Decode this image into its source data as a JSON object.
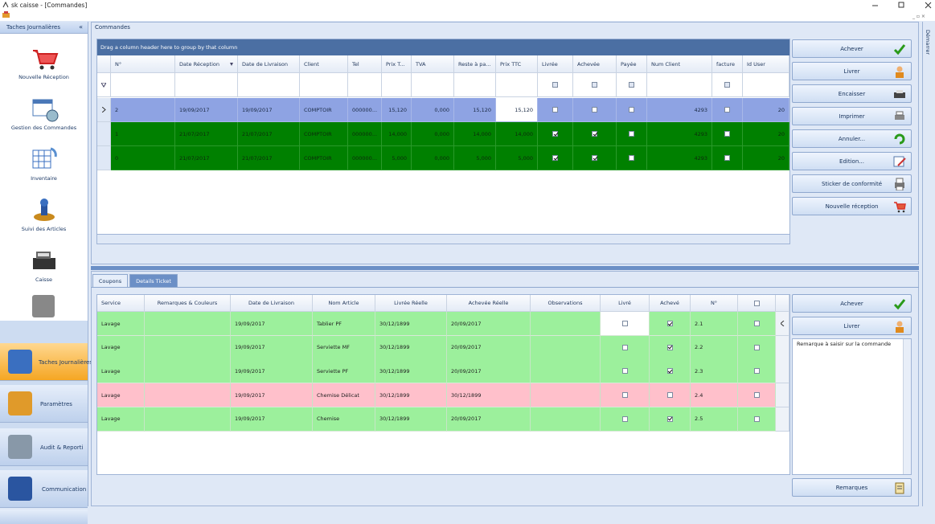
{
  "window": {
    "title": "sk caisse - [Commandes]",
    "side_tab": "Démarrer"
  },
  "sidebar": {
    "header": "Taches Journalières",
    "items": [
      "Nouvelle Réception",
      "Gestion des Commandes",
      "Inventaire",
      "Suivi des Articles",
      "Caisse"
    ],
    "nav": [
      "Taches Journalières",
      "Paramètres",
      "Audit & Reporti",
      "Communication"
    ]
  },
  "commandes": {
    "title": "Commandes",
    "group_hint": "Drag a column header here to group by that column",
    "columns": [
      "N°",
      "Date Réception",
      "Date de Livraison",
      "Client",
      "Tel",
      "Prix T...",
      "TVA",
      "Reste à pa...",
      "Prix TTC",
      "Livrée",
      "Achevée",
      "Payée",
      "Num Client",
      "facture",
      "Id User"
    ],
    "rows": [
      {
        "numero": "2",
        "date_reception": "19/09/2017",
        "date_livraison": "19/09/2017",
        "client": "COMPTOIR",
        "tel": "000000...",
        "prix_t": "15,120",
        "tva": "0,000",
        "reste": "15,120",
        "prix_ttc": "15,120",
        "livree": false,
        "achevee": false,
        "payee": false,
        "num_client": "4293",
        "facture": false,
        "id_user": "20",
        "color": "#8ea3e3"
      },
      {
        "numero": "1",
        "date_reception": "21/07/2017",
        "date_livraison": "21/07/2017",
        "client": "COMPTOIR",
        "tel": "000000...",
        "prix_t": "14,000",
        "tva": "0,000",
        "reste": "14,000",
        "prix_ttc": "14,000",
        "livree": true,
        "achevee": true,
        "payee": false,
        "num_client": "4293",
        "facture": false,
        "id_user": "20",
        "color": "#008000"
      },
      {
        "numero": "0",
        "date_reception": "21/07/2017",
        "date_livraison": "21/07/2017",
        "client": "COMPTOIR",
        "tel": "000000...",
        "prix_t": "5,000",
        "tva": "0,000",
        "reste": "5,000",
        "prix_ttc": "5,000",
        "livree": true,
        "achevee": true,
        "payee": false,
        "num_client": "4293",
        "facture": false,
        "id_user": "20",
        "color": "#008000"
      }
    ],
    "actions": [
      "Achever",
      "Livrer",
      "Encaisser",
      "Imprimer",
      "Annuler...",
      "Edition...",
      "Sticker de conformité",
      "Nouvelle réception"
    ]
  },
  "details": {
    "tabs": [
      "Coupons",
      "Details Ticket"
    ],
    "columns": [
      "Service",
      "Remarques  & Couleurs",
      "Date de Livraison",
      "Nom Article",
      "Livrée Réelle",
      "Achevée Réelle",
      "Observations",
      "Livré",
      "Achevé",
      "N°"
    ],
    "rows": [
      {
        "service": "Lavage",
        "date_livraison": "19/09/2017",
        "nom_article": "Tablier PF",
        "livree_reelle": "30/12/1899",
        "achevee_reelle": "20/09/2017",
        "livre": false,
        "acheve": true,
        "numero": "2.1",
        "selection": false,
        "color": "#9cf09c"
      },
      {
        "service": "Lavage",
        "date_livraison": "19/09/2017",
        "nom_article": "Serviette MF",
        "livree_reelle": "30/12/1899",
        "achevee_reelle": "20/09/2017",
        "livre": false,
        "acheve": true,
        "numero": "2.2",
        "selection": false,
        "color": "#9cf09c"
      },
      {
        "service": "Lavage",
        "date_livraison": "19/09/2017",
        "nom_article": "Serviette PF",
        "livree_reelle": "30/12/1899",
        "achevee_reelle": "20/09/2017",
        "livre": false,
        "acheve": true,
        "numero": "2.3",
        "selection": false,
        "color": "#9cf09c"
      },
      {
        "service": "Lavage",
        "date_livraison": "19/09/2017",
        "nom_article": "Chemise Délicat",
        "livree_reelle": "30/12/1899",
        "achevee_reelle": "30/12/1899",
        "livre": false,
        "acheve": false,
        "numero": "2.4",
        "selection": false,
        "color": "#ffc0cb"
      },
      {
        "service": "Lavage",
        "date_livraison": "19/09/2017",
        "nom_article": "Chemise",
        "livree_reelle": "30/12/1899",
        "achevee_reelle": "20/09/2017",
        "livre": false,
        "acheve": true,
        "numero": "2.5",
        "selection": false,
        "color": "#9cf09c"
      }
    ],
    "actions": [
      "Achever",
      "Livrer"
    ],
    "remark_text": "Remarque à saisir sur la commande",
    "remark_button": "Remarques"
  }
}
